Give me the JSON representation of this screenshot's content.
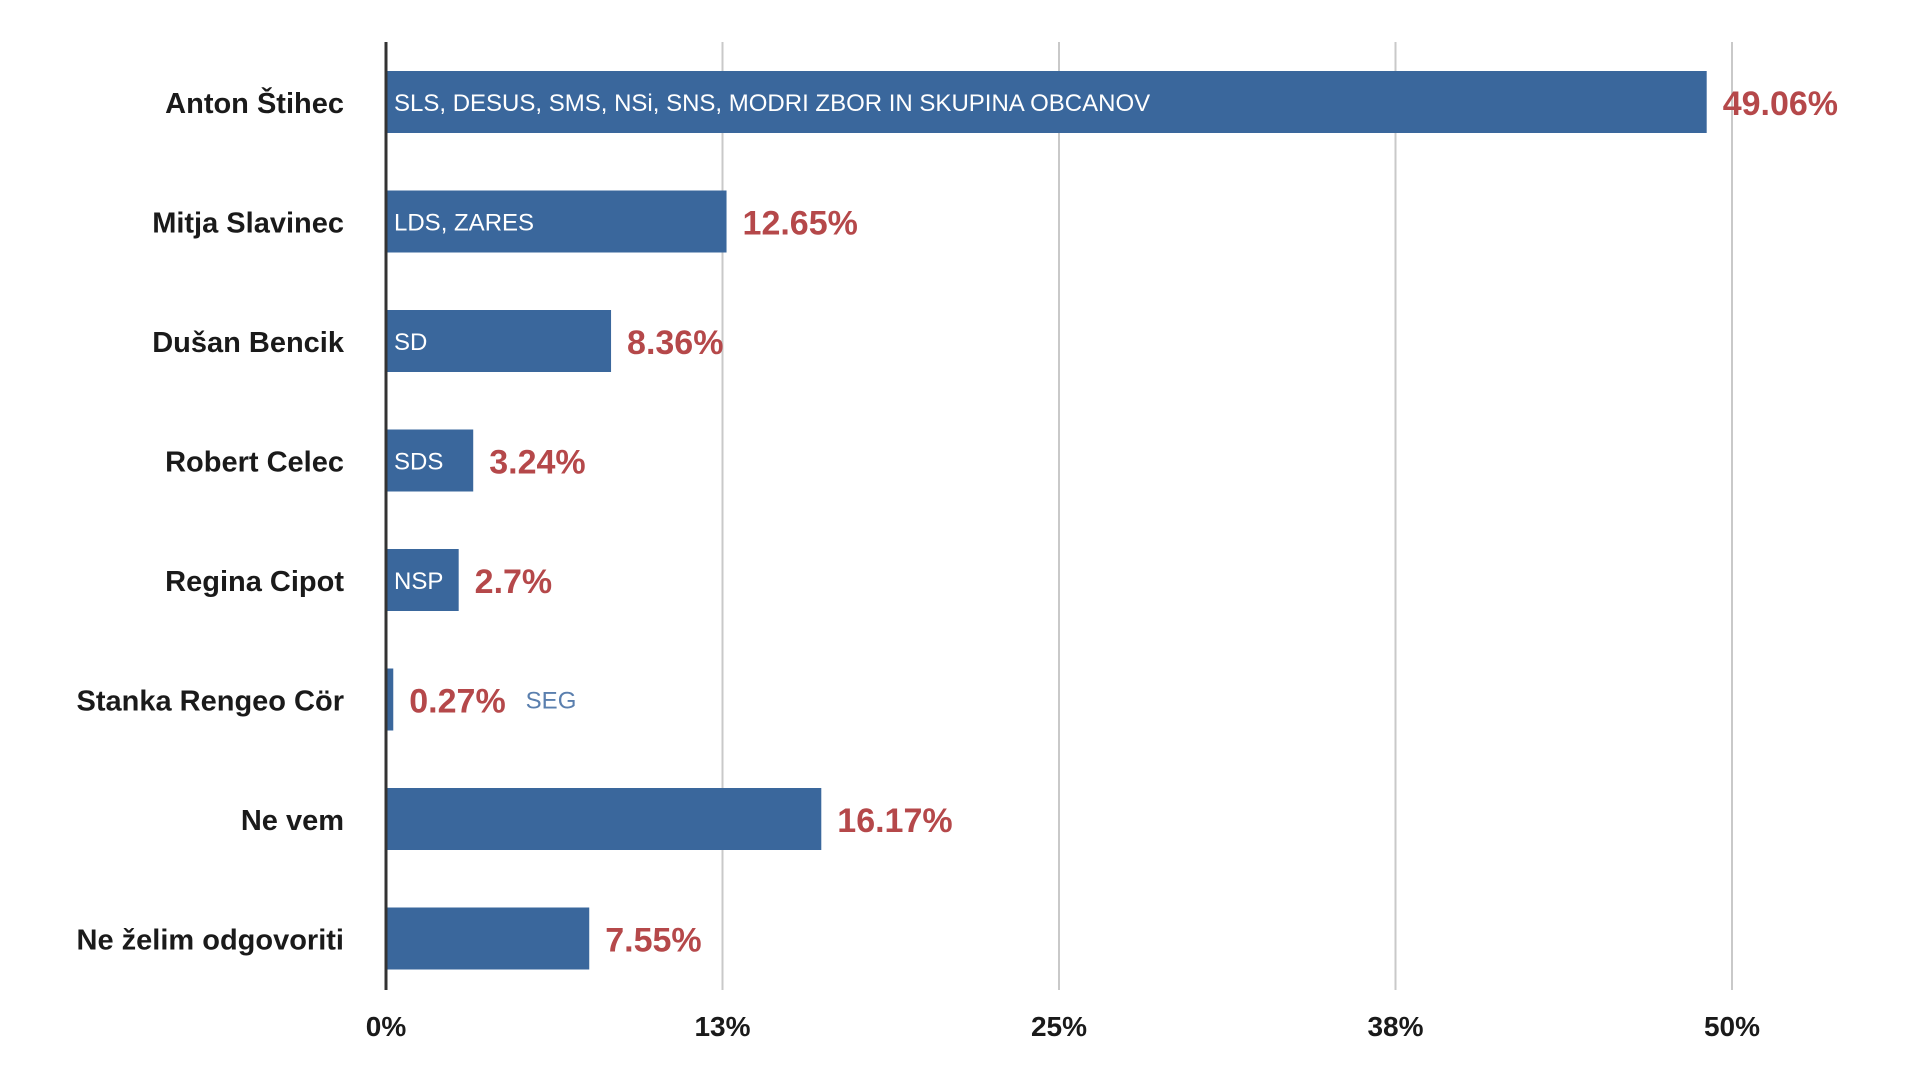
{
  "chart_data": {
    "type": "bar",
    "orientation": "horizontal",
    "categories": [
      "Anton Štihec",
      "Mitja Slavinec",
      "Dušan Bencik",
      "Robert Celec",
      "Regina Cipot",
      "Stanka Rengeo Cör",
      "Ne vem",
      "Ne želim odgovoriti"
    ],
    "values": [
      49.06,
      12.65,
      8.36,
      3.24,
      2.7,
      0.27,
      16.17,
      7.55
    ],
    "value_labels": [
      "49.06%",
      "12.65%",
      "8.36%",
      "3.24%",
      "2.7%",
      "0.27%",
      "16.17%",
      "7.55%"
    ],
    "bar_annotations": [
      "SLS, DESUS, SMS, NSi, SNS, MODRI ZBOR IN SKUPINA OBCANOV",
      "LDS, ZARES",
      "SD",
      "SDS",
      "NSP",
      "SEG",
      "",
      ""
    ],
    "xticks": [
      0,
      12.5,
      25,
      37.5,
      50
    ],
    "xtick_labels": [
      "0%",
      "13%",
      "25%",
      "38%",
      "50%"
    ],
    "xlim": [
      0,
      50
    ],
    "grid": true,
    "title": "",
    "xlabel": "",
    "ylabel": "",
    "colors": {
      "bar": "#3a679c",
      "value_label": "#b5484a",
      "annotation_inside": "#ffffff",
      "annotation_outside": "#5a7fae",
      "grid": "#c9c9c9",
      "axis": "#333333"
    }
  }
}
